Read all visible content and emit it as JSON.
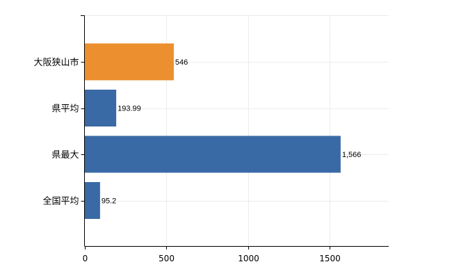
{
  "colors": {
    "highlight": "#ec8f2e",
    "default": "#3a6aa5"
  },
  "chart_data": {
    "type": "bar",
    "orientation": "horizontal",
    "title": "",
    "xlabel": "",
    "ylabel": "",
    "xlim": [
      0,
      1860
    ],
    "grid": true,
    "categories": [
      "大阪狭山市",
      "県平均",
      "県最大",
      "全国平均"
    ],
    "values": [
      546,
      193.99,
      1566,
      95.2
    ],
    "value_labels": [
      "546",
      "193.99",
      "1,566",
      "95.2"
    ],
    "highlight_index": 0,
    "x_ticks": [
      0,
      500,
      1000,
      1500
    ],
    "x_tick_labels": [
      "0",
      "500",
      "1000",
      "1500"
    ]
  }
}
